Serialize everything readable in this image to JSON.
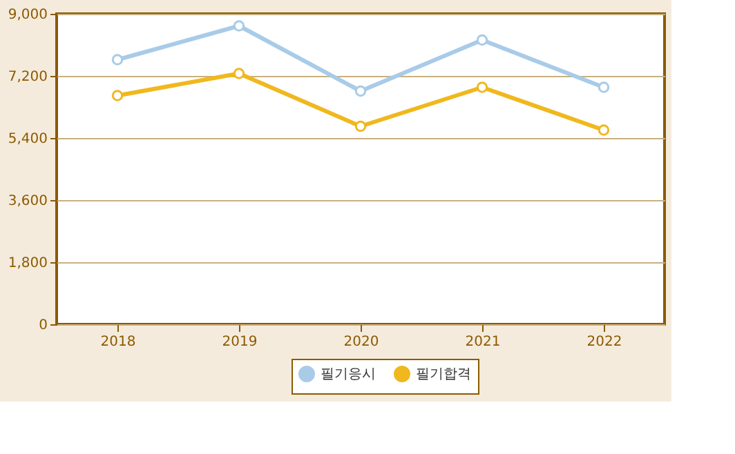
{
  "chart_data": {
    "type": "line",
    "categories": [
      "2018",
      "2019",
      "2020",
      "2021",
      "2022"
    ],
    "series": [
      {
        "name": "필기응시",
        "color": "#a8cbe8",
        "values": [
          7670,
          8650,
          6760,
          8240,
          6870
        ]
      },
      {
        "name": "필기합격",
        "color": "#f0b81e",
        "values": [
          6630,
          7270,
          5740,
          6870,
          5630
        ]
      }
    ],
    "ylim": [
      0,
      9000
    ],
    "yticks": [
      0,
      {
        "value": 1800,
        "label": "1,800"
      },
      {
        "value": 3600,
        "label": "3,600"
      },
      {
        "value": 5400,
        "label": "5,400"
      },
      {
        "value": 7200,
        "label": "7,200"
      },
      {
        "value": 9000,
        "label": "9,000"
      }
    ],
    "grid": "y",
    "legend": "bottom",
    "marker": "circle"
  }
}
